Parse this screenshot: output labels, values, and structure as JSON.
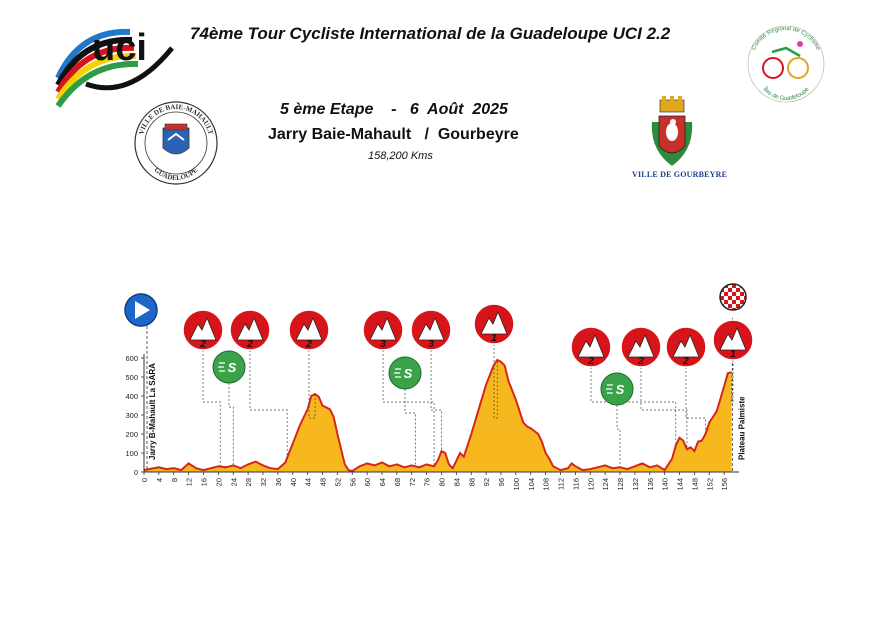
{
  "header": {
    "race_title": "74ème Tour Cycliste International de la Guadeloupe UCI 2.2",
    "stage_line": "5 ème Etape    -   6  Août  2025",
    "route": "Jarry Baie-Mahault   /  Gourbeyre",
    "distance": "158,200 Kms"
  },
  "logos": {
    "uci": "uci",
    "baie_mahault_top": "VILLE DE BAIE-MAHAULT",
    "baie_mahault_bottom": "GUADELOUPE",
    "gourbeyre_caption": "VILLE DE GOURBEYRE",
    "comite_top": "Comité Régional de Cyclisme",
    "comite_bottom": "Îles de Guadeloupe"
  },
  "colors": {
    "profile_fill": "#f7b81f",
    "profile_edge": "#d62718",
    "climb_red": "#d8141b",
    "sprint_green": "#3aa34a",
    "start_blue": "#1e66c8"
  },
  "chart_data": {
    "type": "area",
    "title": "",
    "xlabel": "",
    "ylabel": "",
    "xlim": [
      0,
      160
    ],
    "ylim": [
      0,
      600
    ],
    "x_ticks": [
      0,
      4,
      8,
      12,
      16,
      20,
      24,
      28,
      32,
      36,
      40,
      44,
      48,
      52,
      56,
      60,
      64,
      68,
      72,
      76,
      80,
      84,
      88,
      92,
      96,
      100,
      104,
      108,
      112,
      116,
      120,
      124,
      128,
      132,
      136,
      140,
      144,
      148,
      152,
      156
    ],
    "y_ticks": [
      0,
      100,
      200,
      300,
      400,
      500,
      600
    ],
    "start_label": "Jarry B-Mahault La SARA",
    "finish_label": "Plateau Palmiste",
    "profile": [
      [
        0,
        10
      ],
      [
        2,
        18
      ],
      [
        4,
        25
      ],
      [
        6,
        15
      ],
      [
        8,
        20
      ],
      [
        10,
        10
      ],
      [
        12,
        45
      ],
      [
        14,
        20
      ],
      [
        16,
        10
      ],
      [
        18,
        20
      ],
      [
        20,
        30
      ],
      [
        22,
        25
      ],
      [
        24,
        35
      ],
      [
        26,
        20
      ],
      [
        28,
        40
      ],
      [
        30,
        55
      ],
      [
        32,
        35
      ],
      [
        34,
        20
      ],
      [
        36,
        15
      ],
      [
        38,
        50
      ],
      [
        39,
        100
      ],
      [
        40,
        150
      ],
      [
        42,
        250
      ],
      [
        44,
        330
      ],
      [
        45,
        400
      ],
      [
        46,
        410
      ],
      [
        47,
        395
      ],
      [
        48,
        350
      ],
      [
        49,
        340
      ],
      [
        50,
        330
      ],
      [
        51,
        290
      ],
      [
        52,
        200
      ],
      [
        53,
        120
      ],
      [
        54,
        40
      ],
      [
        55,
        10
      ],
      [
        56,
        5
      ],
      [
        58,
        30
      ],
      [
        60,
        45
      ],
      [
        62,
        35
      ],
      [
        64,
        50
      ],
      [
        66,
        30
      ],
      [
        68,
        40
      ],
      [
        70,
        25
      ],
      [
        72,
        35
      ],
      [
        74,
        25
      ],
      [
        76,
        40
      ],
      [
        78,
        30
      ],
      [
        79,
        60
      ],
      [
        80,
        110
      ],
      [
        81,
        100
      ],
      [
        82,
        40
      ],
      [
        83,
        20
      ],
      [
        84,
        60
      ],
      [
        85,
        100
      ],
      [
        86,
        80
      ],
      [
        88,
        200
      ],
      [
        90,
        330
      ],
      [
        92,
        460
      ],
      [
        94,
        560
      ],
      [
        95,
        590
      ],
      [
        96,
        580
      ],
      [
        97,
        560
      ],
      [
        98,
        480
      ],
      [
        100,
        380
      ],
      [
        102,
        260
      ],
      [
        103,
        240
      ],
      [
        104,
        230
      ],
      [
        106,
        200
      ],
      [
        107,
        160
      ],
      [
        108,
        100
      ],
      [
        109,
        70
      ],
      [
        110,
        30
      ],
      [
        112,
        10
      ],
      [
        114,
        20
      ],
      [
        115,
        45
      ],
      [
        116,
        30
      ],
      [
        118,
        10
      ],
      [
        120,
        15
      ],
      [
        122,
        25
      ],
      [
        124,
        35
      ],
      [
        126,
        20
      ],
      [
        128,
        25
      ],
      [
        130,
        15
      ],
      [
        132,
        30
      ],
      [
        134,
        45
      ],
      [
        136,
        25
      ],
      [
        138,
        35
      ],
      [
        140,
        10
      ],
      [
        142,
        70
      ],
      [
        143,
        140
      ],
      [
        144,
        180
      ],
      [
        145,
        165
      ],
      [
        146,
        120
      ],
      [
        147,
        130
      ],
      [
        148,
        110
      ],
      [
        149,
        160
      ],
      [
        150,
        165
      ],
      [
        151,
        200
      ],
      [
        152,
        260
      ],
      [
        154,
        320
      ],
      [
        156,
        450
      ],
      [
        157,
        520
      ],
      [
        158,
        525
      ]
    ],
    "climbs": [
      {
        "category": "2",
        "km": 20.5
      },
      {
        "category": "2",
        "km": 38.5
      },
      {
        "category": "2",
        "km": 46
      },
      {
        "category": "3",
        "km": 78
      },
      {
        "category": "3",
        "km": 80
      },
      {
        "category": "1",
        "km": 95
      },
      {
        "category": "2",
        "km": 143
      },
      {
        "category": "2",
        "km": 146
      },
      {
        "category": "2",
        "km": 151
      },
      {
        "category": "1",
        "km": 158
      }
    ],
    "sprints": [
      {
        "km": 24
      },
      {
        "km": 73
      },
      {
        "km": 128
      }
    ]
  }
}
